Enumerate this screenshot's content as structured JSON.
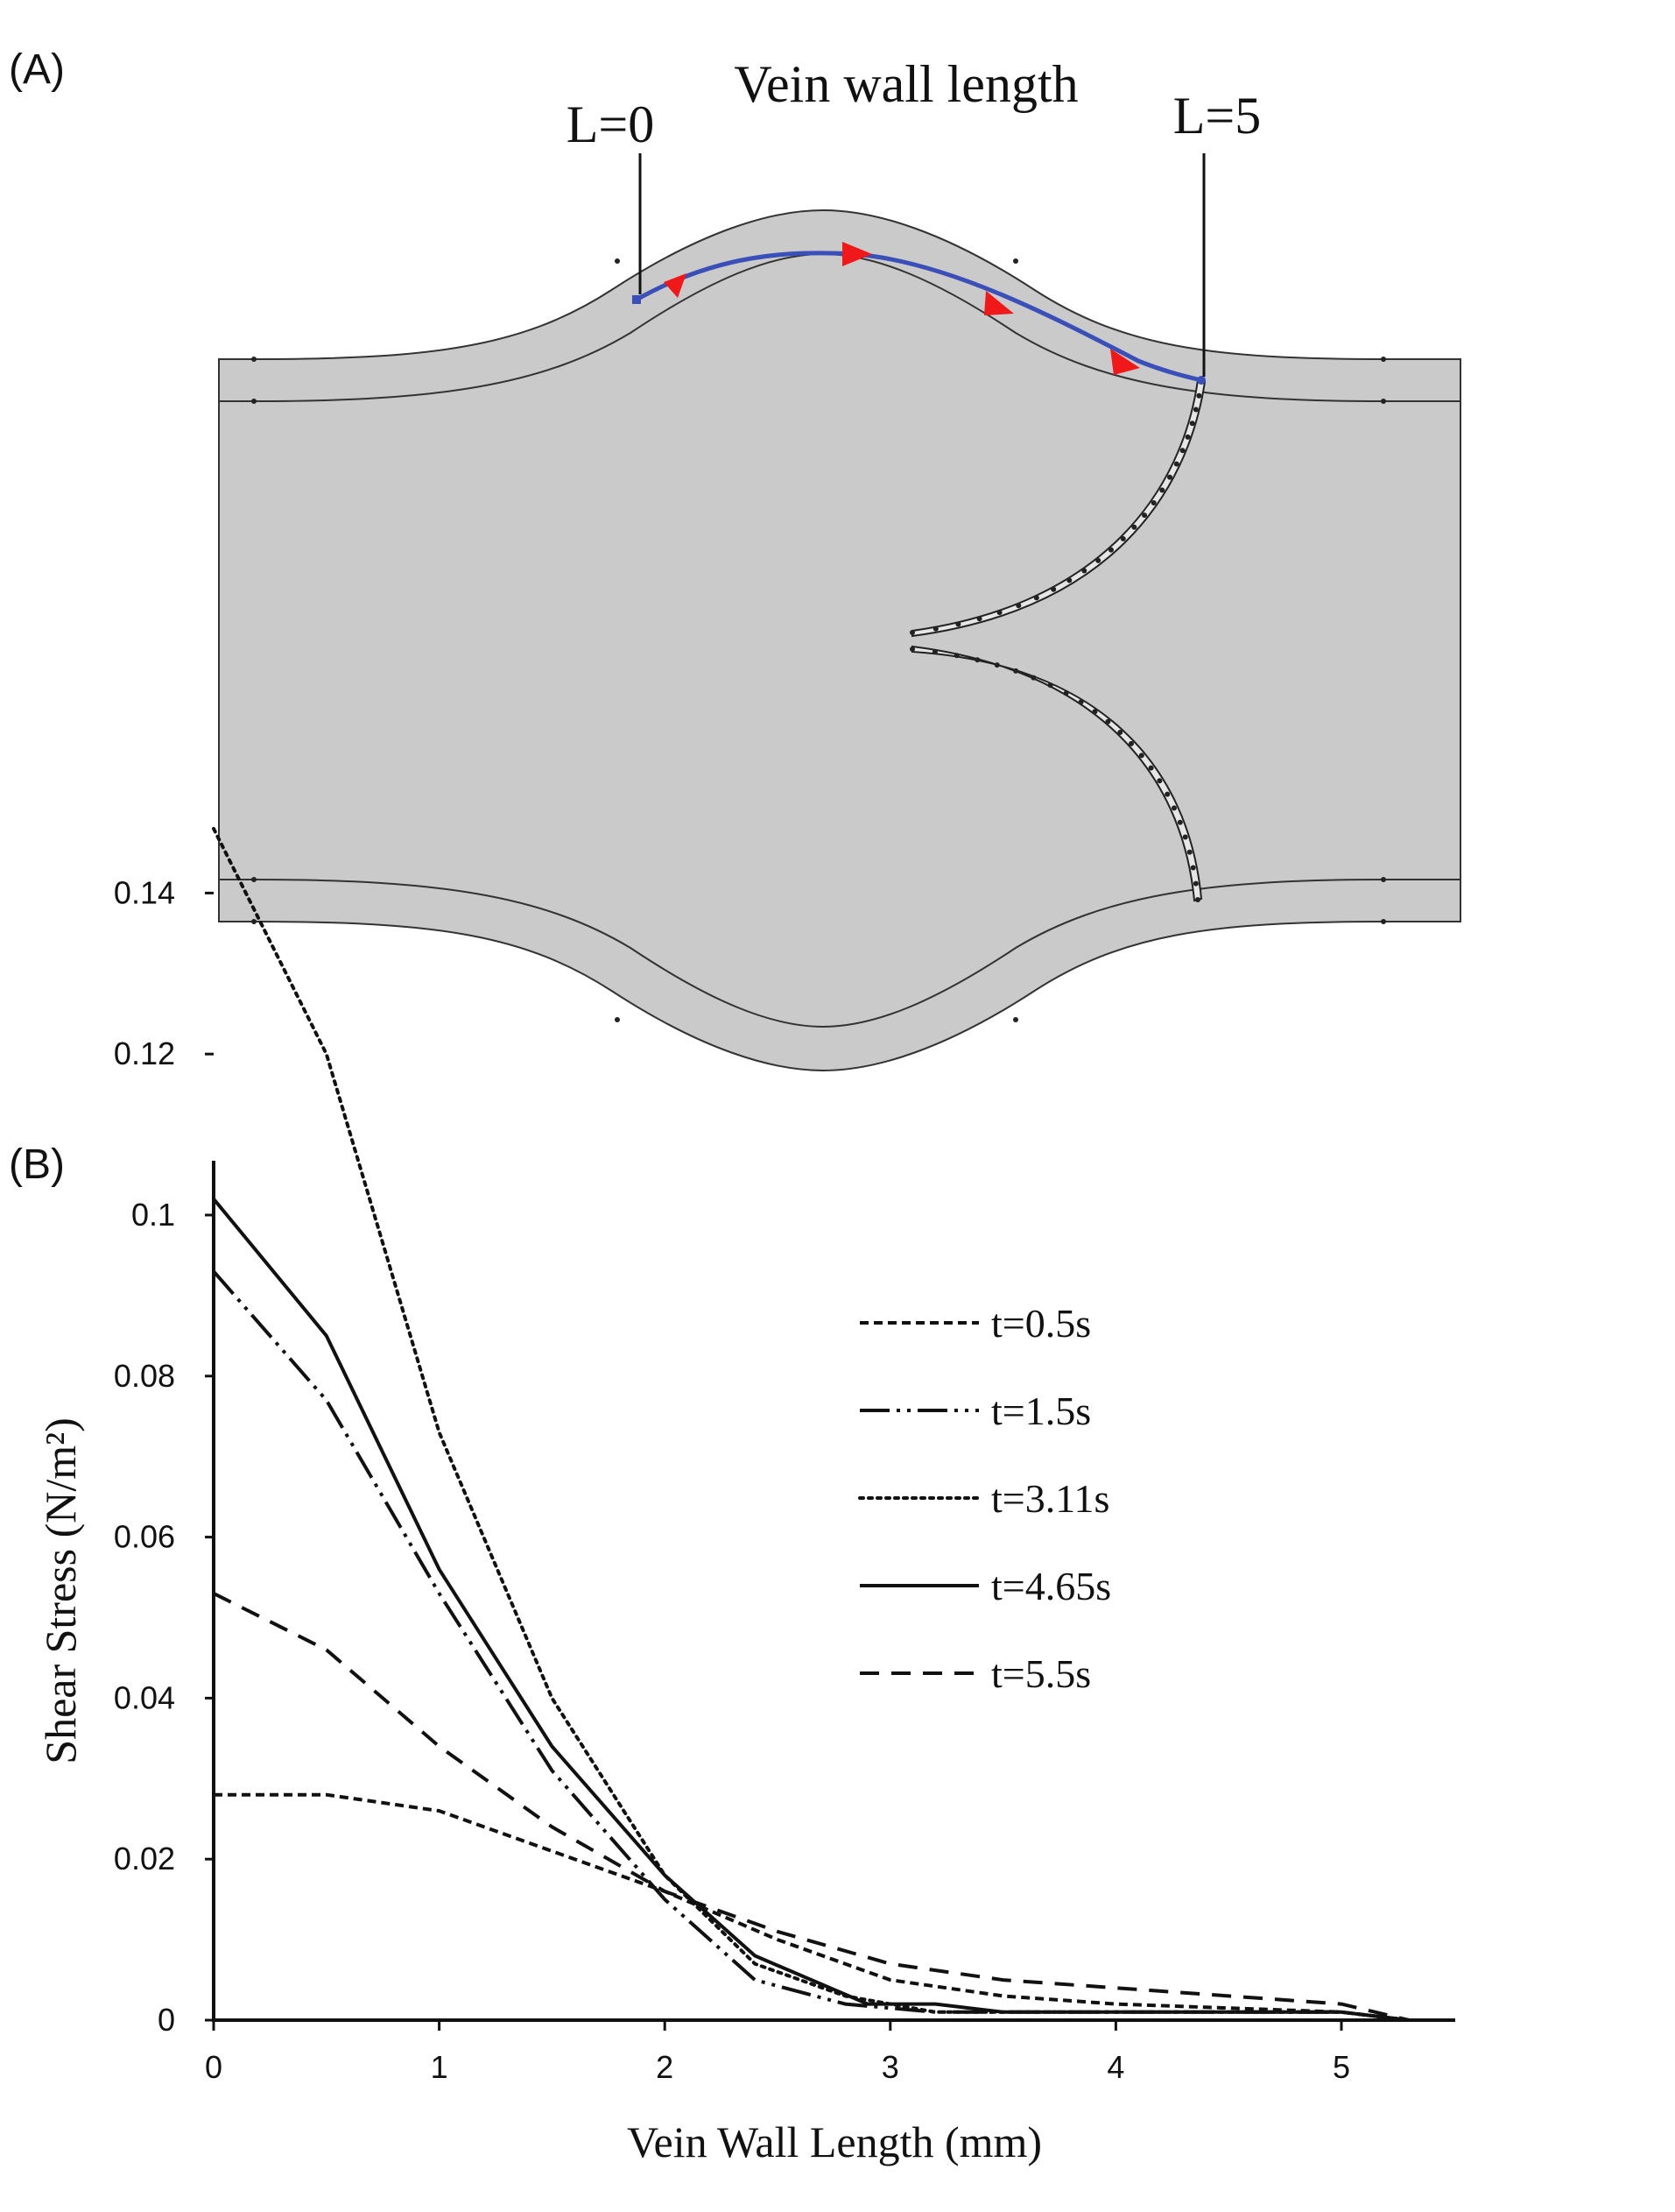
{
  "panel_a": {
    "label": "(A)",
    "title": "Vein wall length",
    "start_label": "L=0",
    "end_label": "L=5",
    "colors": {
      "fill": "#cacaca",
      "outline": "#333333",
      "path": "#3a4fb8",
      "arrow": "#f01818"
    }
  },
  "panel_b": {
    "label": "(B)"
  },
  "chart_data": {
    "type": "line",
    "xlabel": "Vein Wall Length (mm)",
    "ylabel": "Shear Stress (N/m²)",
    "xlim": [
      0,
      5.5
    ],
    "ylim": [
      0,
      0.15
    ],
    "xticks": [
      "0",
      "1",
      "2",
      "3",
      "4",
      "5"
    ],
    "yticks": [
      "0",
      "0.02",
      "0.04",
      "0.06",
      "0.08",
      "0.1",
      "0.12",
      "0.14"
    ],
    "legend_position": "top-right",
    "grid": false,
    "series": [
      {
        "name": "t=0.5s",
        "style": "dashed-short",
        "x": [
          0,
          0.5,
          1,
          1.5,
          2,
          2.5,
          3,
          3.5,
          4,
          4.5,
          5,
          5.3
        ],
        "y": [
          0.028,
          0.028,
          0.026,
          0.021,
          0.016,
          0.01,
          0.005,
          0.003,
          0.002,
          0.0015,
          0.001,
          0
        ]
      },
      {
        "name": "t=1.5s",
        "style": "dash-dot-dot",
        "x": [
          0,
          0.5,
          1,
          1.5,
          2,
          2.4,
          2.8,
          3.2,
          3.5,
          4,
          4.5,
          5,
          5.3
        ],
        "y": [
          0.093,
          0.077,
          0.053,
          0.031,
          0.015,
          0.005,
          0.002,
          0.001,
          0.001,
          0.001,
          0.001,
          0.001,
          0
        ]
      },
      {
        "name": "t=3.11s",
        "style": "dotted",
        "x": [
          0,
          0.5,
          1,
          1.5,
          2,
          2.4,
          2.8,
          3.2,
          3.5,
          4,
          4.5,
          5,
          5.3
        ],
        "y": [
          0.148,
          0.12,
          0.073,
          0.04,
          0.018,
          0.007,
          0.003,
          0.001,
          0.001,
          0.001,
          0.001,
          0.001,
          0
        ]
      },
      {
        "name": "t=4.65s",
        "style": "solid",
        "x": [
          0,
          0.5,
          1,
          1.5,
          2,
          2.4,
          2.9,
          3.2,
          3.5,
          4,
          4.5,
          5,
          5.3
        ],
        "y": [
          0.102,
          0.085,
          0.056,
          0.034,
          0.018,
          0.008,
          0.002,
          0.002,
          0.001,
          0.001,
          0.001,
          0.001,
          0
        ]
      },
      {
        "name": "t=5.5s",
        "style": "dashed-long",
        "x": [
          0,
          0.5,
          1,
          1.5,
          2,
          2.5,
          3,
          3.5,
          4,
          4.5,
          5,
          5.3
        ],
        "y": [
          0.053,
          0.046,
          0.034,
          0.024,
          0.016,
          0.011,
          0.007,
          0.005,
          0.004,
          0.003,
          0.002,
          0
        ]
      }
    ]
  }
}
